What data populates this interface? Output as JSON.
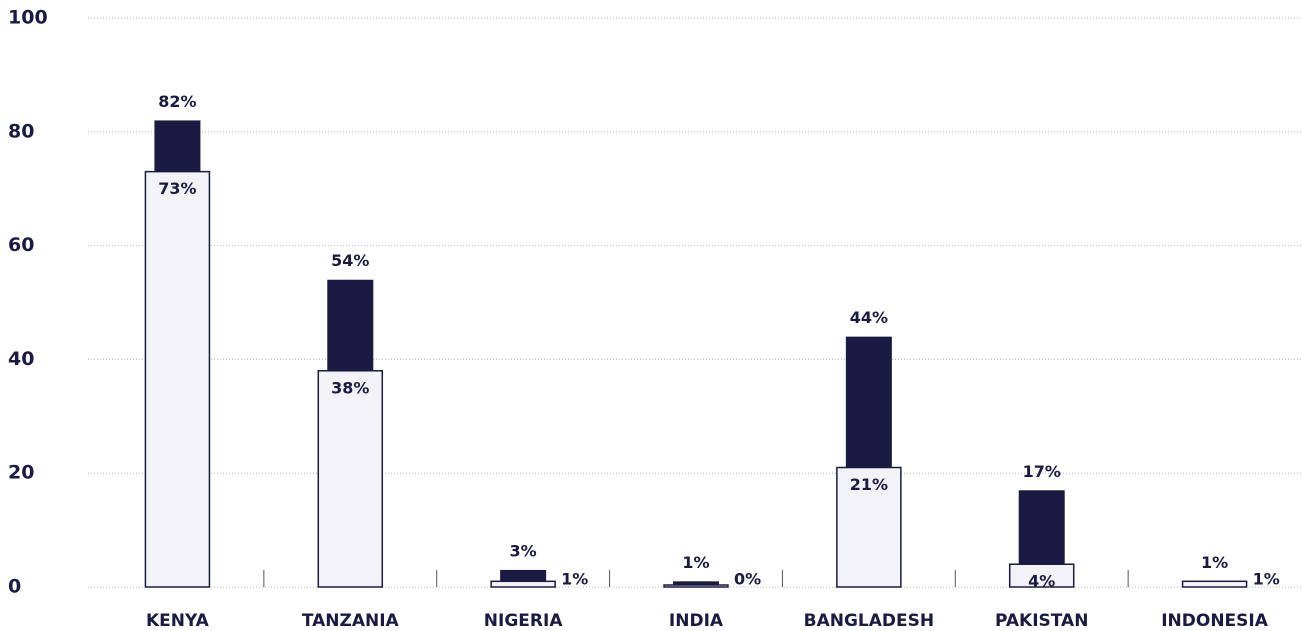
{
  "chart_data": {
    "type": "overlap_bar",
    "categories": [
      "KENYA",
      "TANZANIA",
      "NIGERIA",
      "INDIA",
      "BANGLADESH",
      "PAKISTAN",
      "INDONESIA"
    ],
    "series": [
      {
        "color": "#1b1a42",
        "values": [
          82,
          54,
          3,
          1,
          44,
          17,
          1
        ],
        "value_labels": [
          "82%",
          "54%",
          "3%",
          "1%",
          "44%",
          "17%",
          "1%"
        ]
      },
      {
        "color": "#f3f3f7",
        "values": [
          73,
          38,
          1,
          0,
          21,
          4,
          1
        ],
        "value_labels": [
          "73%",
          "38%",
          "1%",
          "0%",
          "21%",
          "4%",
          "1%"
        ]
      }
    ],
    "ylim": [
      0,
      100
    ],
    "yticks": [
      0,
      20,
      40,
      60,
      80,
      100
    ],
    "grid": true
  }
}
